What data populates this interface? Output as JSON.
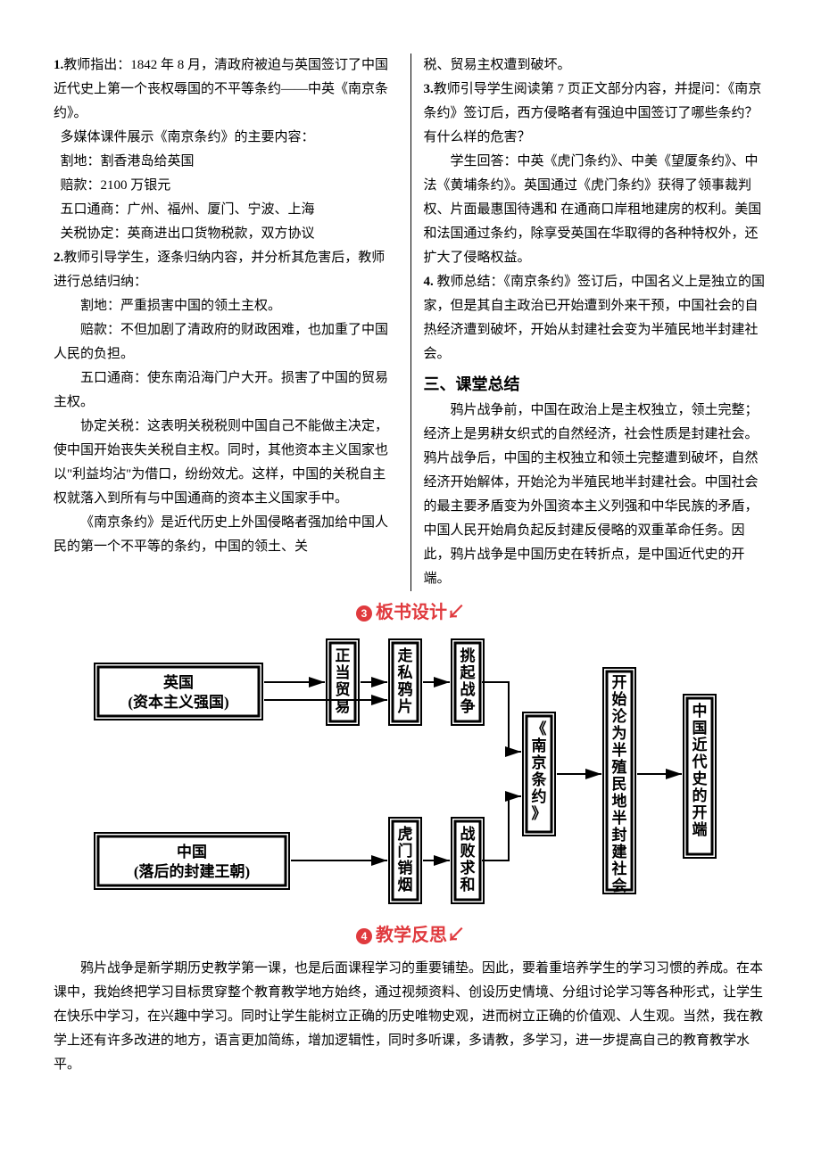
{
  "col1": {
    "p1_prefix": "1.",
    "p1": "教师指出：1842 年 8 月，清政府被迫与英国签订了中国近代史上第一个丧权辱国的不平等条约——中英《南京条约》。",
    "p2": "多媒体课件展示《南京条约》的主要内容：",
    "li1": "割地：割香港岛给英国",
    "li2": "赔款：2100 万银元",
    "li3": "五口通商：广州、福州、厦门、宁波、上海",
    "li4": "关税协定：英商进出口货物税款，双方协议",
    "p3_prefix": "2.",
    "p3": "教师引导学生，逐条归纳内容，并分析其危害后，教师进行总结归纳：",
    "p4": "割地：严重损害中国的领土主权。",
    "p5": "赔款：不但加剧了清政府的财政困难，也加重了中国人民的负担。",
    "p6": "五口通商：使东南沿海门户大开。损害了中国的贸易主权。",
    "p7": "协定关税：这表明关税税则中国自己不能做主决定，使中国开始丧失关税自主权。同时，其他资本主义国家也以\"利益均沾\"为借口，纷纷效尤。这样，中国的关税自主权就落入到所有与中国通商的资本主义国家手中。",
    "p8": "《南京条约》是近代历史上外国侵略者强加给中国人民的第一个不平等的条约，中国的领土、关"
  },
  "col2": {
    "p1": "税、贸易主权遭到破坏。",
    "p2_prefix": "3.",
    "p2": "教师引导学生阅读第 7 页正文部分内容，并提问：《南京条约》签订后，西方侵略者有强迫中国签订了哪些条约？有什么样的危害？",
    "p3": "学生回答：中英《虎门条约》、中美《望厦条约》、中法《黄埔条约》。英国通过《虎门条约》获得了领事裁判权、片面最惠国待遇和 在通商口岸租地建房的权利。美国和法国通过条约，除享受英国在华取得的各种特权外，还扩大了侵略权益。",
    "p4_prefix": "4.",
    "p4": "教师总结：《南京条约》签订后，中国名义上是独立的国家，但是其自主政治已开始遭到外来干预，中国社会的自热经济遭到破坏，开始从封建社会变为半殖民地半封建社会。",
    "h": "三、课堂总结",
    "p5": "鸦片战争前，中国在政治上是主权独立，领土完整；经济上是男耕女织式的自然经济，社会性质是封建社会。鸦片战争后，中国的主权独立和领土完整遭到破坏，自然经济开始解体，开始沦为半殖民地半封建社会。中国社会的最主要矛盾变为外国资本主义列强和中华民族的矛盾，中国人民开始肩负起反封建反侵略的双重革命任务。因此，鸦片战争是中国历史在转折点，是中国近代史的开端。"
  },
  "sections": {
    "board_num": "3",
    "board": "板书设计",
    "reflect_num": "4",
    "reflect": "教学反思"
  },
  "diagram": {
    "box_uk1": "英国",
    "box_uk2": "(资本主义强国)",
    "box_cn1": "中国",
    "box_cn2": "(落后的封建王朝)",
    "v_trade": "正当贸易",
    "v_smuggle": "走私鸦片",
    "v_warStart": "挑起战争",
    "v_humen": "虎门销烟",
    "v_defeat": "战败求和",
    "v_nanjing": "《南京条约》",
    "v_result": "开始沦为半殖民地半封建社会",
    "v_era": "中国近代史的开端"
  },
  "reflection": {
    "p1": "鸦片战争是新学期历史教学第一课，也是后面课程学习的重要铺垫。因此，要着重培养学生的学习习惯的养成。在本课中，我始终把学习目标贯穿整个教育教学地方始终，通过视频资料、创设历史情境、分组讨论学习等各种形式，让学生在快乐中学习，在兴趣中学习。同时让学生能树立正确的历史唯物史观，进而树立正确的价值观、人生观。当然，我在教学上还有许多改进的地方，语言更加简练，增加逻辑性，同时多听课，多请教，多学习，进一步提高自己的教育教学水平。"
  },
  "colors": {
    "red": "#e03a3e",
    "black": "#000000",
    "bg": "#ffffff"
  }
}
